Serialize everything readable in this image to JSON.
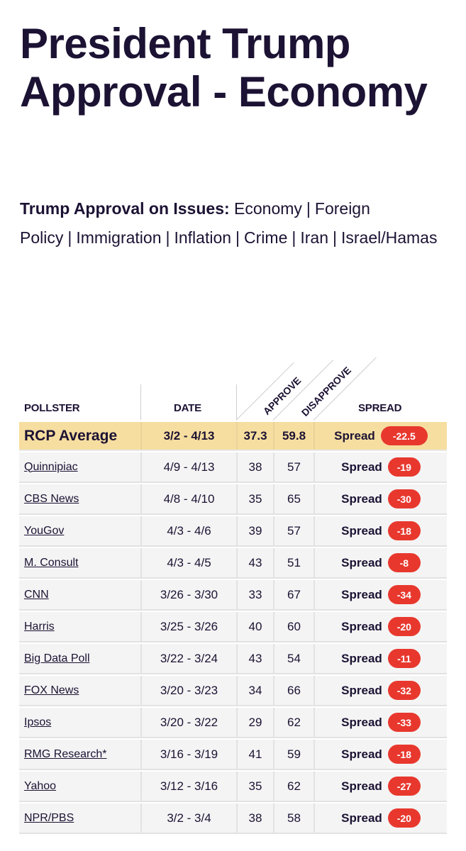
{
  "title": "President Trump Approval - Economy",
  "issues": {
    "lead": "Trump Approval on Issues:",
    "links": [
      "Economy",
      "Foreign Policy",
      "Immigration",
      "Inflation",
      "Crime",
      "Iran",
      "Israel/Hamas"
    ]
  },
  "table": {
    "headers": {
      "pollster": "POLLSTER",
      "date": "DATE",
      "approve": "APPROVE",
      "disapprove": "DISAPPROVE",
      "spread": "SPREAD"
    },
    "spread_label": "Spread",
    "spread_color": "#e8382e",
    "average_bg": "#f6dea0",
    "average": {
      "pollster": "RCP Average",
      "date": "3/2 - 4/13",
      "approve": "37.3",
      "disapprove": "59.8",
      "spread": "-22.5"
    },
    "rows": [
      {
        "pollster": "Quinnipiac",
        "date": "4/9 - 4/13",
        "approve": "38",
        "disapprove": "57",
        "spread": "-19"
      },
      {
        "pollster": "CBS News",
        "date": "4/8 - 4/10",
        "approve": "35",
        "disapprove": "65",
        "spread": "-30"
      },
      {
        "pollster": "YouGov",
        "date": "4/3 - 4/6",
        "approve": "39",
        "disapprove": "57",
        "spread": "-18"
      },
      {
        "pollster": "M. Consult",
        "date": "4/3 - 4/5",
        "approve": "43",
        "disapprove": "51",
        "spread": "-8"
      },
      {
        "pollster": "CNN",
        "date": "3/26 - 3/30",
        "approve": "33",
        "disapprove": "67",
        "spread": "-34"
      },
      {
        "pollster": "Harris",
        "date": "3/25 - 3/26",
        "approve": "40",
        "disapprove": "60",
        "spread": "-20"
      },
      {
        "pollster": "Big Data Poll",
        "date": "3/22 - 3/24",
        "approve": "43",
        "disapprove": "54",
        "spread": "-11"
      },
      {
        "pollster": "FOX News",
        "date": "3/20 - 3/23",
        "approve": "34",
        "disapprove": "66",
        "spread": "-32"
      },
      {
        "pollster": "Ipsos",
        "date": "3/20 - 3/22",
        "approve": "29",
        "disapprove": "62",
        "spread": "-33"
      },
      {
        "pollster": "RMG Research*",
        "date": "3/16 - 3/19",
        "approve": "41",
        "disapprove": "59",
        "spread": "-18"
      },
      {
        "pollster": "Yahoo",
        "date": "3/12 - 3/16",
        "approve": "35",
        "disapprove": "62",
        "spread": "-27"
      },
      {
        "pollster": "NPR/PBS",
        "date": "3/2 - 3/4",
        "approve": "38",
        "disapprove": "58",
        "spread": "-20"
      }
    ]
  }
}
